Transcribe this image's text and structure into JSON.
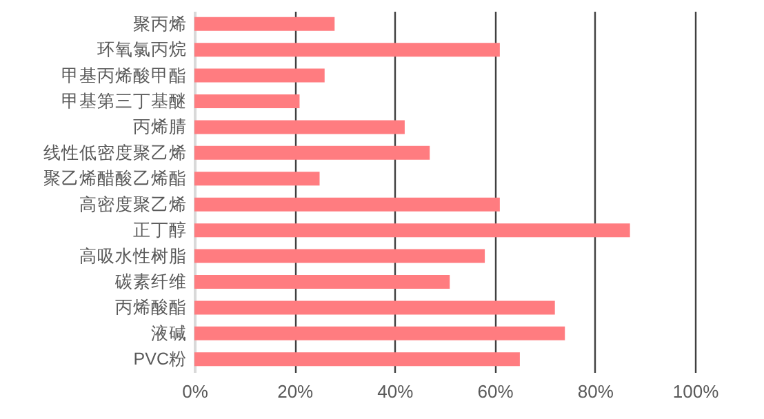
{
  "chart_data": {
    "type": "bar",
    "orientation": "horizontal",
    "categories": [
      "聚丙烯",
      "环氧氯丙烷",
      "甲基丙烯酸甲酯",
      "甲基第三丁基醚",
      "丙烯腈",
      "线性低密度聚乙烯",
      "聚乙烯醋酸乙烯酯",
      "高密度聚乙烯",
      "正丁醇",
      "高吸水性树脂",
      "碳素纤维",
      "丙烯酸酯",
      "液碱",
      "PVC粉"
    ],
    "values": [
      28,
      61,
      26,
      21,
      42,
      47,
      25,
      61,
      87,
      58,
      51,
      72,
      74,
      65
    ],
    "color": "#ff7c80",
    "xlim": [
      0,
      100
    ],
    "xticks": [
      {
        "value": 0,
        "label": "0%"
      },
      {
        "value": 20,
        "label": "20%"
      },
      {
        "value": 40,
        "label": "40%"
      },
      {
        "value": 60,
        "label": "60%"
      },
      {
        "value": 80,
        "label": "80%"
      },
      {
        "value": 100,
        "label": "100%"
      }
    ],
    "grid": "x"
  }
}
